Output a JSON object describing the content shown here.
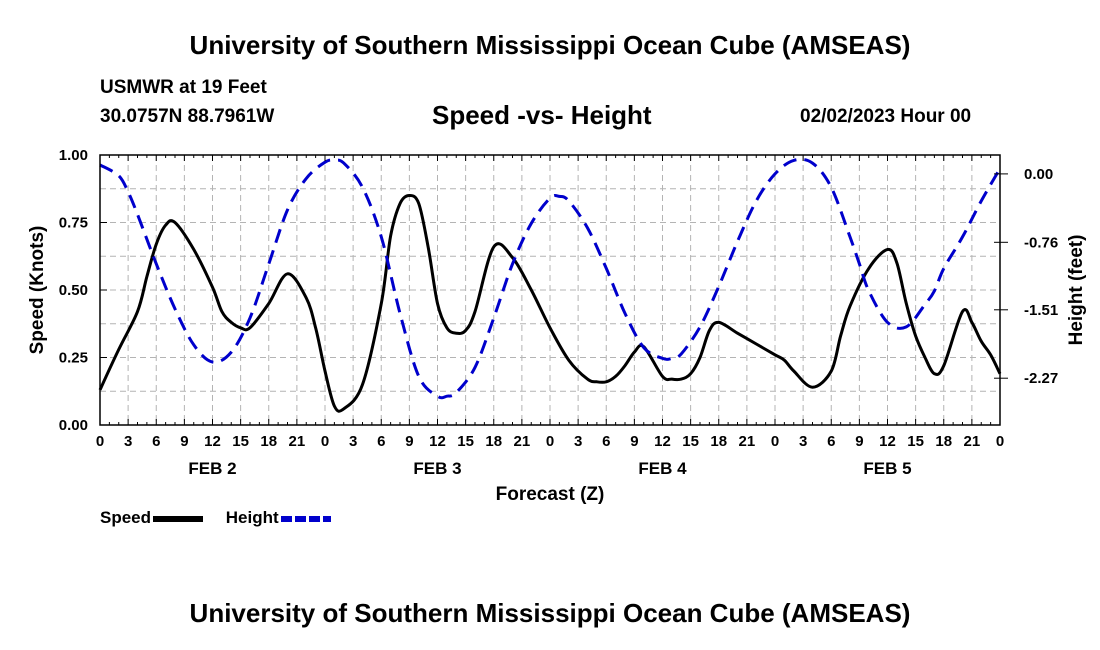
{
  "header": {
    "title": "University of Southern Mississippi Ocean Cube (AMSEAS)",
    "station": "USMWR at 19 Feet",
    "coords": "30.0757N  88.7961W",
    "subtitle": "Speed -vs- Height",
    "datetime": "02/02/2023 Hour 00"
  },
  "footer": {
    "title": "University of Southern Mississippi Ocean Cube (AMSEAS)"
  },
  "legend": {
    "speed_label": "Speed",
    "height_label": "Height",
    "speed_color": "#000000",
    "height_color": "#0000cc"
  },
  "chart_data": {
    "type": "line",
    "title": "Speed -vs- Height",
    "xlabel": "Forecast (Z)",
    "ylabel": "Speed (Knots)",
    "y2label": "Height (feet)",
    "x_unit": "hours since 02/02/2023 00Z",
    "xlim": [
      0,
      96
    ],
    "ylim": [
      0,
      1
    ],
    "y2lim": [
      -2.79,
      0.21
    ],
    "grid": true,
    "x_ticks": [
      0,
      3,
      6,
      9,
      12,
      15,
      18,
      21,
      24,
      27,
      30,
      33,
      36,
      39,
      42,
      45,
      48,
      51,
      54,
      57,
      60,
      63,
      66,
      69,
      72,
      75,
      78,
      81,
      84,
      87,
      90,
      93,
      96
    ],
    "x_tick_labels": [
      "0",
      "3",
      "6",
      "9",
      "12",
      "15",
      "18",
      "21",
      "0",
      "3",
      "6",
      "9",
      "12",
      "15",
      "18",
      "21",
      "0",
      "3",
      "6",
      "9",
      "12",
      "15",
      "18",
      "21",
      "0",
      "3",
      "6",
      "9",
      "12",
      "15",
      "18",
      "21",
      "0"
    ],
    "day_labels": [
      {
        "label": "FEB 2",
        "hour": 12
      },
      {
        "label": "FEB 3",
        "hour": 36
      },
      {
        "label": "FEB 4",
        "hour": 60
      },
      {
        "label": "FEB 5",
        "hour": 84
      }
    ],
    "y_ticks": [
      0,
      0.25,
      0.5,
      0.75,
      1.0
    ],
    "y_tick_labels": [
      "0.00",
      "0.25",
      "0.50",
      "0.75",
      "1.00"
    ],
    "y2_ticks": [
      0.0,
      -0.76,
      -1.51,
      -2.27
    ],
    "y2_tick_labels": [
      "0.00",
      "-0.76",
      "-1.51",
      "-2.27"
    ],
    "series": [
      {
        "name": "Speed",
        "axis": "left",
        "style": "solid",
        "color": "#000000",
        "x": [
          0,
          2,
          4,
          5,
          6,
          7,
          8,
          10,
          12,
          13,
          14,
          15,
          16,
          18,
          20,
          22,
          23,
          24,
          25,
          26,
          28,
          30,
          31,
          32,
          33,
          34,
          35,
          36,
          37,
          38,
          39,
          40,
          42,
          44,
          46,
          48,
          50,
          52,
          53,
          54,
          55,
          56,
          57,
          58,
          60,
          61,
          62,
          63,
          64,
          65,
          66,
          68,
          70,
          72,
          73,
          74,
          76,
          78,
          79,
          80,
          82,
          84,
          85,
          86,
          87,
          88,
          89,
          90,
          92,
          93,
          94,
          95,
          96
        ],
        "values": [
          0.13,
          0.28,
          0.42,
          0.55,
          0.67,
          0.74,
          0.75,
          0.65,
          0.51,
          0.42,
          0.38,
          0.36,
          0.36,
          0.45,
          0.56,
          0.47,
          0.36,
          0.2,
          0.07,
          0.06,
          0.15,
          0.45,
          0.7,
          0.82,
          0.85,
          0.82,
          0.66,
          0.45,
          0.36,
          0.34,
          0.35,
          0.42,
          0.66,
          0.62,
          0.5,
          0.36,
          0.24,
          0.17,
          0.16,
          0.16,
          0.18,
          0.22,
          0.27,
          0.29,
          0.18,
          0.17,
          0.17,
          0.19,
          0.25,
          0.35,
          0.38,
          0.34,
          0.3,
          0.26,
          0.24,
          0.2,
          0.14,
          0.2,
          0.33,
          0.44,
          0.58,
          0.65,
          0.6,
          0.45,
          0.33,
          0.25,
          0.19,
          0.22,
          0.42,
          0.38,
          0.31,
          0.26,
          0.19
        ]
      },
      {
        "name": "Height",
        "axis": "right",
        "style": "dashed",
        "color": "#0000cc",
        "x": [
          0,
          2,
          3,
          4,
          6,
          8,
          10,
          12,
          14,
          16,
          18,
          20,
          22,
          24,
          25,
          26,
          28,
          30,
          32,
          34,
          36,
          37,
          38,
          40,
          42,
          44,
          46,
          48,
          49,
          50,
          52,
          54,
          56,
          58,
          60,
          61,
          62,
          64,
          66,
          68,
          70,
          72,
          74,
          76,
          78,
          80,
          81,
          82,
          84,
          86,
          88,
          89,
          90,
          92,
          94,
          96
        ],
        "values": [
          0.1,
          -0.02,
          -0.2,
          -0.45,
          -1.0,
          -1.5,
          -1.9,
          -2.09,
          -1.98,
          -1.6,
          -1.0,
          -0.4,
          -0.05,
          0.13,
          0.15,
          0.12,
          -0.15,
          -0.7,
          -1.55,
          -2.25,
          -2.47,
          -2.47,
          -2.43,
          -2.15,
          -1.6,
          -1.0,
          -0.55,
          -0.27,
          -0.25,
          -0.3,
          -0.6,
          -1.05,
          -1.55,
          -1.93,
          -2.05,
          -2.05,
          -2.0,
          -1.7,
          -1.25,
          -0.75,
          -0.3,
          0.0,
          0.15,
          0.12,
          -0.15,
          -0.7,
          -1.0,
          -1.3,
          -1.65,
          -1.7,
          -1.45,
          -1.3,
          -1.05,
          -0.7,
          -0.3,
          0.06
        ]
      }
    ]
  }
}
